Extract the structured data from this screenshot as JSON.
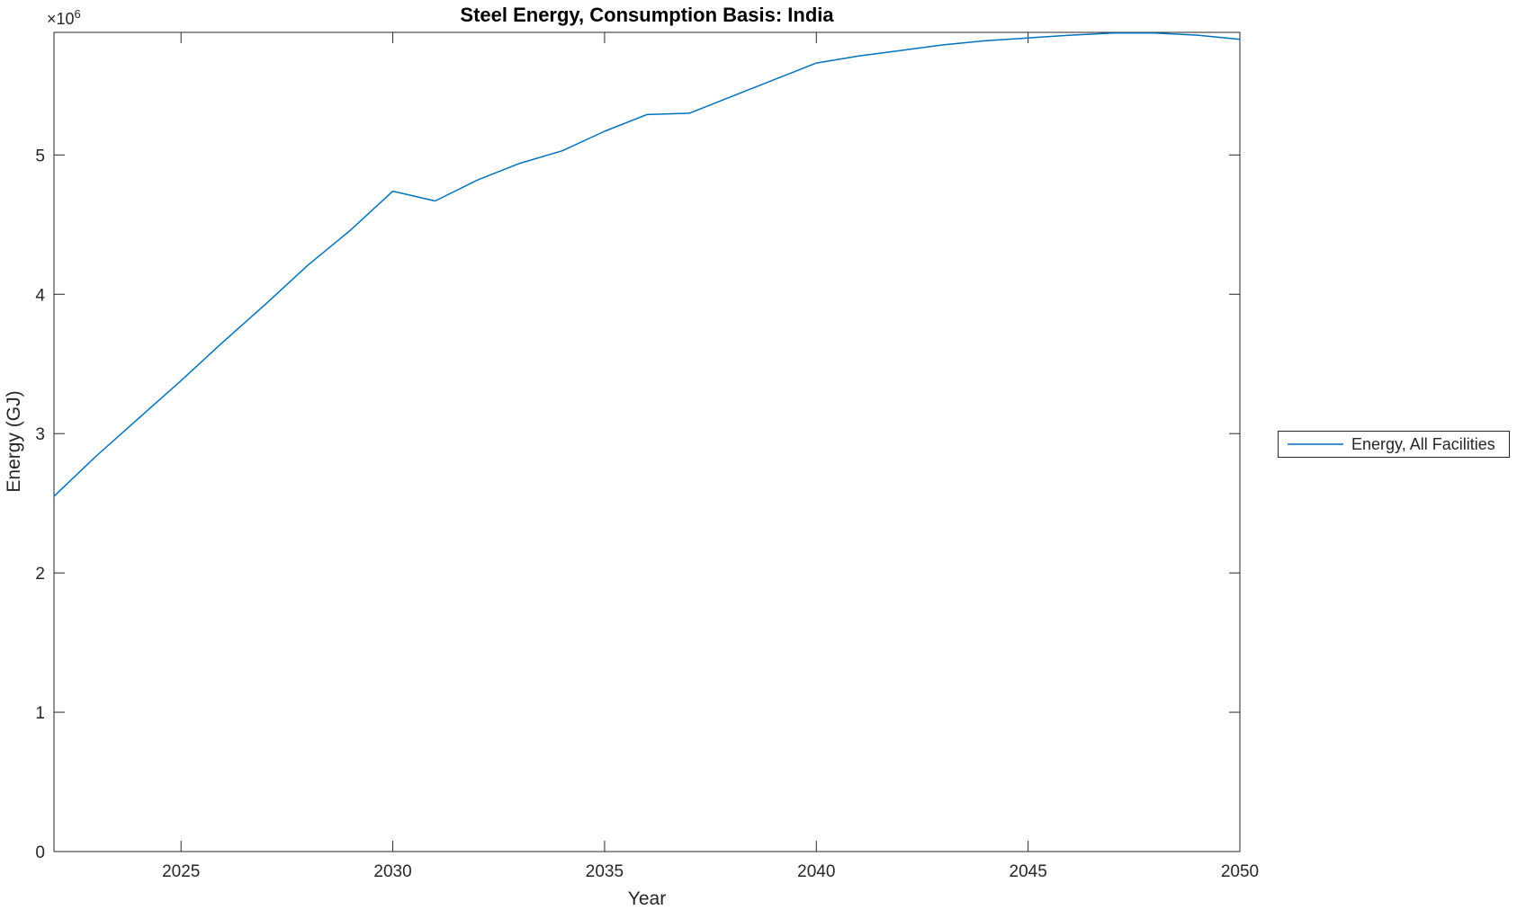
{
  "chart_data": {
    "type": "line",
    "title": "Steel Energy, Consumption Basis: India",
    "xlabel": "Year",
    "ylabel": "Energy (GJ)",
    "y_axis_multiplier": {
      "base": "×10",
      "exponent": "6"
    },
    "xlim": [
      2022,
      2050
    ],
    "ylim": [
      0,
      5880000
    ],
    "grid": false,
    "axis_color": "#262626",
    "background_color": "#ffffff",
    "x_ticks": [
      {
        "value": 2025,
        "label": "2025"
      },
      {
        "value": 2030,
        "label": "2030"
      },
      {
        "value": 2035,
        "label": "2035"
      },
      {
        "value": 2040,
        "label": "2040"
      },
      {
        "value": 2045,
        "label": "2045"
      },
      {
        "value": 2050,
        "label": "2050"
      }
    ],
    "y_ticks": [
      {
        "value": 0,
        "label": "0"
      },
      {
        "value": 1000000,
        "label": "1"
      },
      {
        "value": 2000000,
        "label": "2"
      },
      {
        "value": 3000000,
        "label": "3"
      },
      {
        "value": 4000000,
        "label": "4"
      },
      {
        "value": 5000000,
        "label": "5"
      }
    ],
    "legend": {
      "position": "outside-right",
      "entries": [
        {
          "label": "Energy, All Facilities",
          "color": "#0072BD"
        }
      ]
    },
    "series": [
      {
        "name": "Energy, All Facilities",
        "color": "#0072BD",
        "x": [
          2022,
          2023,
          2024,
          2025,
          2026,
          2027,
          2028,
          2029,
          2030,
          2031,
          2032,
          2033,
          2034,
          2035,
          2036,
          2037,
          2038,
          2039,
          2040,
          2041,
          2042,
          2043,
          2044,
          2045,
          2046,
          2047,
          2048,
          2049,
          2050
        ],
        "y": [
          2550000,
          2840000,
          3110000,
          3380000,
          3660000,
          3930000,
          4210000,
          4460000,
          4740000,
          4670000,
          4820000,
          4940000,
          5030000,
          5170000,
          5290000,
          5300000,
          5420000,
          5540000,
          5660000,
          5710000,
          5750000,
          5790000,
          5820000,
          5840000,
          5860000,
          5875000,
          5875000,
          5860000,
          5830000
        ]
      }
    ]
  }
}
